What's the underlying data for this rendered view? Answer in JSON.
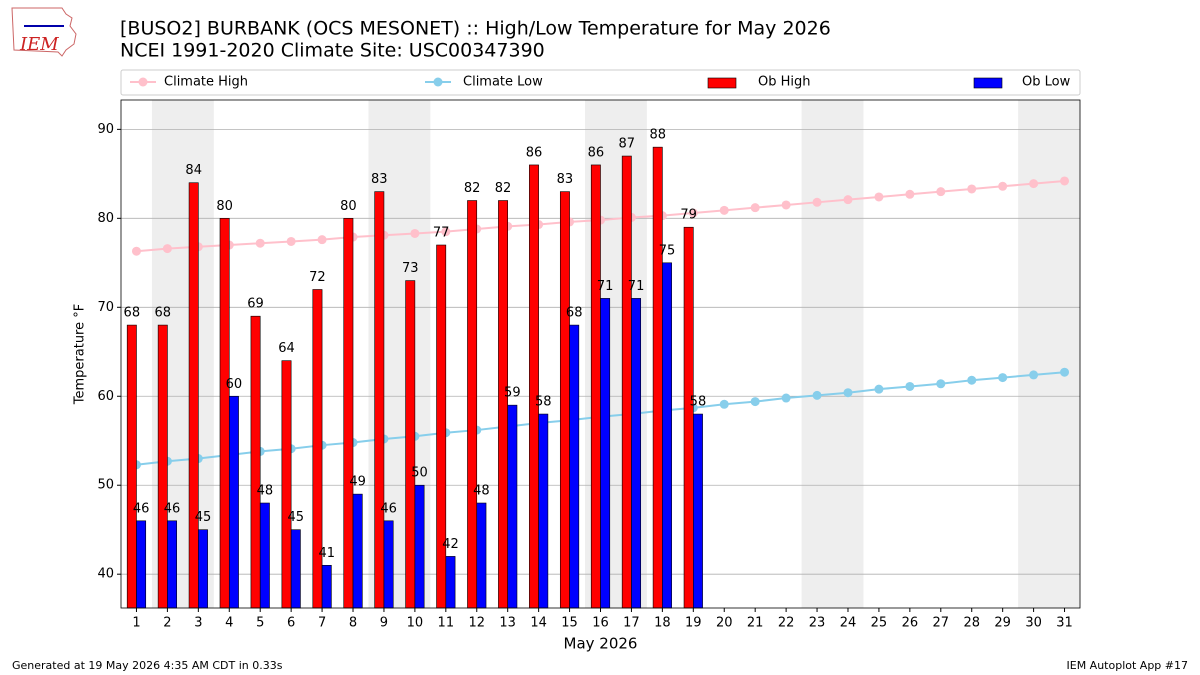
{
  "logo_text": "IEM",
  "footer_left": "Generated at 19 May 2026 4:35 AM CDT in 0.33s",
  "footer_right": "IEM Autoplot App #17",
  "chart_data": {
    "type": "bar_line",
    "title": "[BUSO2] BURBANK (OCS MESONET) :: High/Low Temperature for May 2026",
    "subtitle": "NCEI 1991-2020 Climate Site: USC00347390",
    "x_label": "May 2026",
    "y_label": "Temperature °F",
    "x": [
      1,
      2,
      3,
      4,
      5,
      6,
      7,
      8,
      9,
      10,
      11,
      12,
      13,
      14,
      15,
      16,
      17,
      18,
      19,
      20,
      21,
      22,
      23,
      24,
      25,
      26,
      27,
      28,
      29,
      30,
      31
    ],
    "xlim": [
      0.5,
      31.5
    ],
    "xticks": [
      1,
      2,
      3,
      4,
      5,
      6,
      7,
      8,
      9,
      10,
      11,
      12,
      13,
      14,
      15,
      16,
      17,
      18,
      19,
      20,
      21,
      22,
      23,
      24,
      25,
      26,
      27,
      28,
      29,
      30,
      31
    ],
    "ylim": [
      36.2,
      93.3
    ],
    "yticks": [
      40,
      50,
      60,
      70,
      80,
      90
    ],
    "grid": true,
    "shade_x": [
      [
        1.5,
        3.5
      ],
      [
        8.5,
        10.5
      ],
      [
        15.5,
        17.5
      ],
      [
        22.5,
        24.5
      ],
      [
        29.5,
        31.5
      ]
    ],
    "series": [
      {
        "name": "Climate High",
        "kind": "line",
        "color": "#ffc0cb",
        "values": [
          76.3,
          76.6,
          76.8,
          77.0,
          77.2,
          77.4,
          77.6,
          77.9,
          78.1,
          78.3,
          78.5,
          78.8,
          79.1,
          79.3,
          79.6,
          79.8,
          80.1,
          80.3,
          80.6,
          80.9,
          81.2,
          81.5,
          81.8,
          82.1,
          82.4,
          82.7,
          83.0,
          83.3,
          83.6,
          83.9,
          84.2
        ]
      },
      {
        "name": "Climate Low",
        "kind": "line",
        "color": "#87ceeb",
        "values": [
          52.3,
          52.7,
          53.0,
          53.4,
          53.8,
          54.1,
          54.5,
          54.8,
          55.2,
          55.5,
          55.9,
          56.2,
          56.6,
          57.0,
          57.3,
          57.7,
          58.0,
          58.4,
          58.7,
          59.1,
          59.4,
          59.8,
          60.1,
          60.4,
          60.8,
          61.1,
          61.4,
          61.8,
          62.1,
          62.4,
          62.7
        ]
      },
      {
        "name": "Ob High",
        "kind": "bar",
        "color": "#ff0000",
        "values": [
          68,
          68,
          84,
          80,
          69,
          64,
          72,
          80,
          83,
          73,
          77,
          82,
          82,
          86,
          83,
          86,
          87,
          88,
          79,
          null,
          null,
          null,
          null,
          null,
          null,
          null,
          null,
          null,
          null,
          null,
          null
        ]
      },
      {
        "name": "Ob Low",
        "kind": "bar",
        "color": "#0000ff",
        "values": [
          46,
          46,
          45,
          60,
          48,
          45,
          41,
          49,
          46,
          50,
          42,
          48,
          59,
          58,
          68,
          71,
          71,
          75,
          58,
          null,
          null,
          null,
          null,
          null,
          null,
          null,
          null,
          null,
          null,
          null,
          null
        ]
      }
    ]
  }
}
